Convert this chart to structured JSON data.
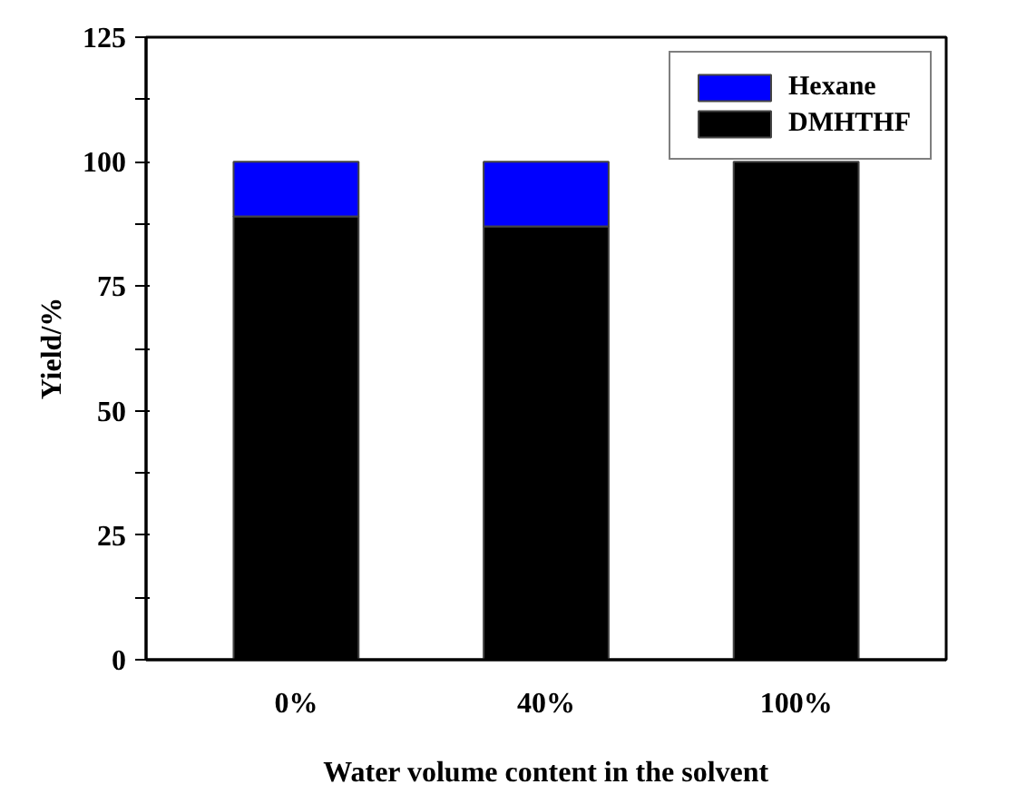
{
  "chart_data": {
    "type": "bar",
    "stacked": true,
    "xlabel": "Water volume content in the solvent",
    "ylabel": "Yield/%",
    "categories": [
      "0%",
      "40%",
      "100%"
    ],
    "series": [
      {
        "name": "DMHTHF",
        "color": "#000000",
        "values": [
          89,
          87,
          100
        ]
      },
      {
        "name": "Hexane",
        "color": "#0000ff",
        "values": [
          11,
          13,
          null
        ]
      }
    ],
    "ylim": [
      0,
      125
    ],
    "yticks": [
      0,
      {
        "value": 12.5,
        "label": null
      },
      25,
      {
        "value": 37.5,
        "label": null
      },
      50,
      {
        "value": 62.5,
        "label": null
      },
      75,
      {
        "value": 87.5,
        "label": null
      },
      100,
      {
        "value": 112.5,
        "label": null
      },
      125
    ],
    "grid": false,
    "legend": "top right"
  }
}
